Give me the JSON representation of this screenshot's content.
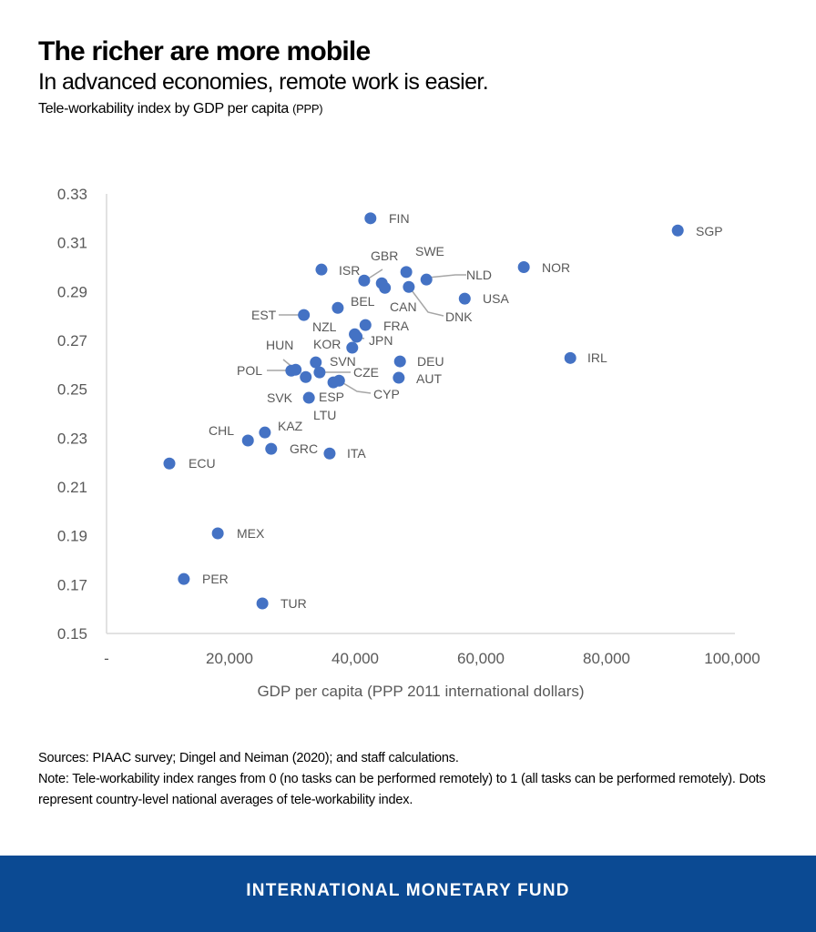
{
  "header": {
    "title": "The richer are more mobile",
    "subtitle": "In advanced economies, remote work is easier.",
    "caption": "Tele-workability index by GDP per capita",
    "caption_unit": "(PPP)"
  },
  "chart_data": {
    "type": "scatter",
    "xlabel": "GDP per capita (PPP 2011 international dollars)",
    "ylabel": "",
    "xlim": [
      0,
      100000
    ],
    "ylim": [
      0.15,
      0.33
    ],
    "x_ticks": [
      0,
      20000,
      40000,
      60000,
      80000,
      100000
    ],
    "x_tick_labels": [
      "-",
      "20,000",
      "40,000",
      "60,000",
      "80,000",
      "100,000"
    ],
    "y_ticks": [
      0.15,
      0.17,
      0.19,
      0.21,
      0.23,
      0.25,
      0.27,
      0.29,
      0.31,
      0.33
    ],
    "y_tick_labels": [
      "0.15",
      "0.17",
      "0.19",
      "0.21",
      "0.23",
      "0.25",
      "0.27",
      "0.29",
      "0.31",
      "0.33"
    ],
    "grid": false,
    "marker_color": "#4472c4",
    "points": [
      {
        "label": "FIN",
        "x": 42000,
        "y": 0.32
      },
      {
        "label": "SGP",
        "x": 90900,
        "y": 0.315
      },
      {
        "label": "NOR",
        "x": 66400,
        "y": 0.3
      },
      {
        "label": "SWE",
        "x": 47700,
        "y": 0.298
      },
      {
        "label": "ISR",
        "x": 34200,
        "y": 0.299
      },
      {
        "label": "GBR",
        "x": 41000,
        "y": 0.2945
      },
      {
        "label": "",
        "x": 43800,
        "y": 0.2934
      },
      {
        "label": "CAN",
        "x": 44300,
        "y": 0.2915
      },
      {
        "label": "DNK",
        "x": 48100,
        "y": 0.2919
      },
      {
        "label": "NLD",
        "x": 50900,
        "y": 0.2949
      },
      {
        "label": "USA",
        "x": 57000,
        "y": 0.2871
      },
      {
        "label": "BEL",
        "x": 36800,
        "y": 0.2833
      },
      {
        "label": "EST",
        "x": 31400,
        "y": 0.2804
      },
      {
        "label": "FRA",
        "x": 41200,
        "y": 0.2763
      },
      {
        "label": "NZL",
        "x": 39500,
        "y": 0.2725
      },
      {
        "label": "JPN",
        "x": 39800,
        "y": 0.2715
      },
      {
        "label": "KOR",
        "x": 39100,
        "y": 0.267
      },
      {
        "label": "HUN",
        "x": 30100,
        "y": 0.258
      },
      {
        "label": "POL",
        "x": 29400,
        "y": 0.2576
      },
      {
        "label": "SVN",
        "x": 33300,
        "y": 0.261
      },
      {
        "label": "CZE",
        "x": 33900,
        "y": 0.2569
      },
      {
        "label": "SVK",
        "x": 31700,
        "y": 0.255
      },
      {
        "label": "ESP",
        "x": 36100,
        "y": 0.2528
      },
      {
        "label": "CYP",
        "x": 37000,
        "y": 0.2535
      },
      {
        "label": "LTU",
        "x": 32200,
        "y": 0.2465
      },
      {
        "label": "DEU",
        "x": 46700,
        "y": 0.2614
      },
      {
        "label": "AUT",
        "x": 46500,
        "y": 0.2547
      },
      {
        "label": "IRL",
        "x": 73800,
        "y": 0.2628
      },
      {
        "label": "KAZ",
        "x": 25200,
        "y": 0.2323
      },
      {
        "label": "CHL",
        "x": 22500,
        "y": 0.229
      },
      {
        "label": "GRC",
        "x": 26200,
        "y": 0.2256
      },
      {
        "label": "ITA",
        "x": 35500,
        "y": 0.2237
      },
      {
        "label": "ECU",
        "x": 10000,
        "y": 0.2196
      },
      {
        "label": "MEX",
        "x": 17700,
        "y": 0.191
      },
      {
        "label": "PER",
        "x": 12300,
        "y": 0.1723
      },
      {
        "label": "TUR",
        "x": 24800,
        "y": 0.1623
      }
    ]
  },
  "notes": {
    "sources": "Sources: PIAAC survey; Dingel and Neiman (2020); and staff calculations.",
    "note": "Note: Tele-workability index ranges from 0 (no tasks can be performed remotely) to 1 (all tasks can be performed remotely).  Dots represent country-level national averages of tele-workability index."
  },
  "footer": {
    "org": "INTERNATIONAL MONETARY FUND",
    "color": "#0b4a93"
  }
}
